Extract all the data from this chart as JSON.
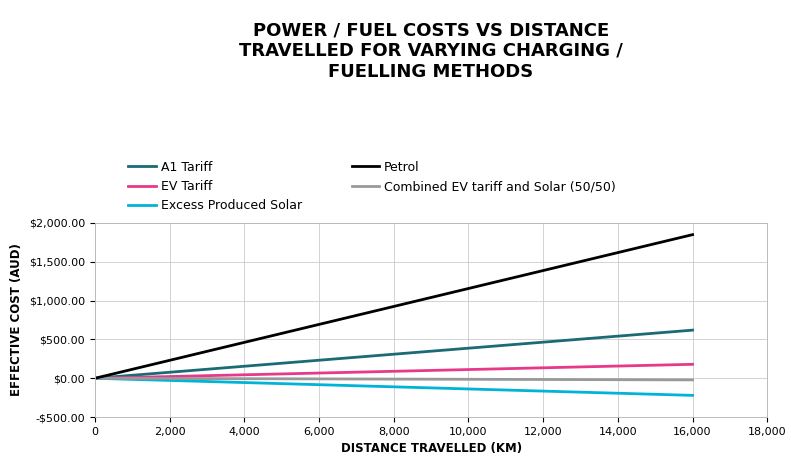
{
  "title": "POWER / FUEL COSTS VS DISTANCE\nTRAVELLED FOR VARYING CHARGING /\nFUELLING METHODS",
  "xlabel": "DISTANCE TRAVELLED (KM)",
  "ylabel": "EFFECTIVE COST (AUD)",
  "x_start": 0,
  "x_end": 16000,
  "x_lim": [
    0,
    18000
  ],
  "y_lim": [
    -500,
    2000
  ],
  "y_ticks": [
    -500,
    0,
    500,
    1000,
    1500,
    2000
  ],
  "x_ticks": [
    0,
    2000,
    4000,
    6000,
    8000,
    10000,
    12000,
    14000,
    16000,
    18000
  ],
  "series": [
    {
      "label": "A1 Tariff",
      "color": "#1a6b75",
      "linewidth": 2.0,
      "slope": 0.03875,
      "intercept": 0
    },
    {
      "label": "EV Tariff",
      "color": "#e8388a",
      "linewidth": 2.0,
      "slope": 0.01125,
      "intercept": 0
    },
    {
      "label": "Excess Produced Solar",
      "color": "#00b4d8",
      "linewidth": 2.0,
      "slope": -0.01375,
      "intercept": 0
    },
    {
      "label": "Petrol",
      "color": "#000000",
      "linewidth": 2.0,
      "slope": 0.1156,
      "intercept": 0
    },
    {
      "label": "Combined EV tariff and Solar (50/50)",
      "color": "#999999",
      "linewidth": 2.0,
      "slope": -0.0013,
      "intercept": 0
    }
  ],
  "background_color": "#ffffff",
  "grid_color": "#cccccc",
  "title_fontsize": 13,
  "legend_fontsize": 9,
  "axis_label_fontsize": 8.5,
  "tick_fontsize": 8
}
